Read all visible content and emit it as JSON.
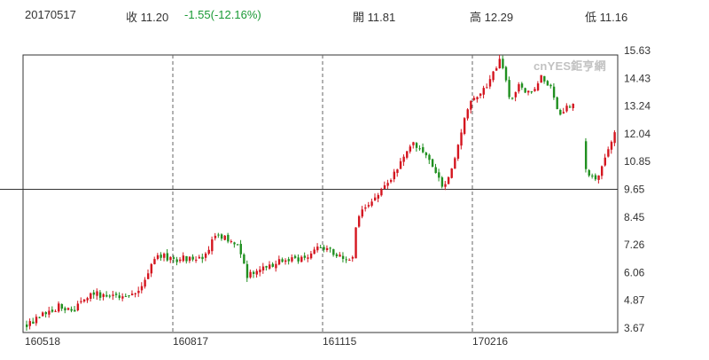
{
  "header": {
    "date": "20170517",
    "close_label": "收 11.20",
    "change": "-1.55(-12.16%)",
    "open_label": "開 11.81",
    "high_label": "高 12.29",
    "low_label": "低 11.16"
  },
  "watermark": "cnYES鉅亨網",
  "colors": {
    "up": "#d4151f",
    "down": "#1f8f1f",
    "grid": "#666666",
    "reference": "#333333"
  },
  "chart_data": {
    "type": "candlestick",
    "x_ticks": [
      "160518",
      "160817",
      "161115",
      "170216"
    ],
    "y_ticks": [
      15.63,
      14.43,
      13.24,
      12.04,
      10.85,
      9.65,
      8.45,
      7.26,
      6.06,
      4.87,
      3.67
    ],
    "ylim": [
      3.67,
      15.63
    ],
    "reference_line": 9.65,
    "grid": "vertical dashed at x ticks",
    "approx_close_path": [
      [
        0,
        3.8
      ],
      [
        5,
        4.3
      ],
      [
        10,
        4.6
      ],
      [
        15,
        4.5
      ],
      [
        20,
        5.2
      ],
      [
        25,
        5.0
      ],
      [
        30,
        5.1
      ],
      [
        35,
        5.2
      ],
      [
        40,
        6.9
      ],
      [
        45,
        6.6
      ],
      [
        50,
        6.7
      ],
      [
        55,
        6.8
      ],
      [
        58,
        7.7
      ],
      [
        62,
        7.5
      ],
      [
        65,
        7.3
      ],
      [
        68,
        5.9
      ],
      [
        72,
        6.2
      ],
      [
        75,
        6.4
      ],
      [
        80,
        6.7
      ],
      [
        85,
        6.6
      ],
      [
        88,
        7.0
      ],
      [
        92,
        7.2
      ],
      [
        95,
        6.8
      ],
      [
        100,
        6.5
      ],
      [
        102,
        8.6
      ],
      [
        105,
        8.9
      ],
      [
        110,
        9.8
      ],
      [
        115,
        10.7
      ],
      [
        118,
        11.6
      ],
      [
        121,
        11.5
      ],
      [
        124,
        11.0
      ],
      [
        128,
        9.7
      ],
      [
        131,
        10.6
      ],
      [
        134,
        12.3
      ],
      [
        137,
        13.7
      ],
      [
        140,
        13.8
      ],
      [
        143,
        14.5
      ],
      [
        146,
        15.4
      ],
      [
        149,
        13.3
      ],
      [
        152,
        14.2
      ],
      [
        155,
        13.7
      ],
      [
        158,
        14.5
      ],
      [
        161,
        14.1
      ],
      [
        164,
        12.8
      ],
      [
        167,
        13.3
      ],
      [
        170,
        13.4
      ],
      [
        172,
        10.6
      ],
      [
        175,
        10.0
      ],
      [
        178,
        11.0
      ],
      [
        181,
        12.2
      ]
    ]
  }
}
